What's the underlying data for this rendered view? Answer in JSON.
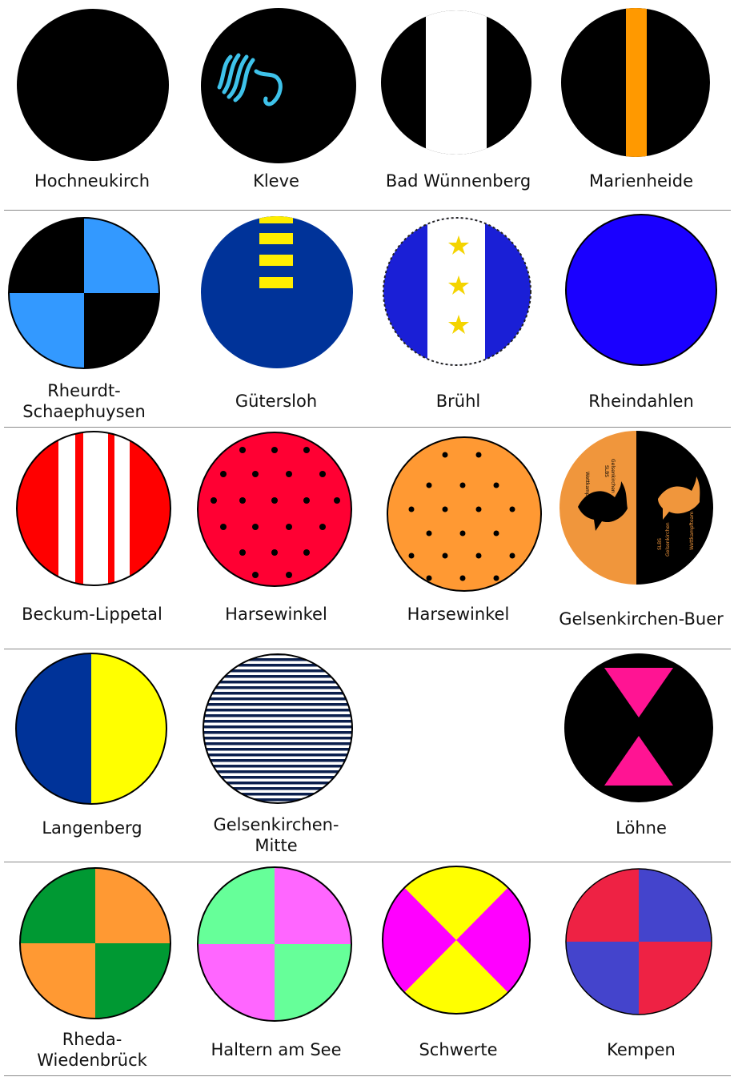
{
  "rows": [
    [
      {
        "label": "Hochneukirch"
      },
      {
        "label": "Kleve"
      },
      {
        "label": "Bad Wünnenberg"
      },
      {
        "label": "Marienheide"
      }
    ],
    [
      {
        "label": "Rheurdt-\nSchaephuysen"
      },
      {
        "label": "Gütersloh"
      },
      {
        "label": "Brühl"
      },
      {
        "label": "Rheindahlen"
      }
    ],
    [
      {
        "label": "Beckum-Lippetal"
      },
      {
        "label": "Harsewinkel"
      },
      {
        "label": "Harsewinkel"
      },
      {
        "label": "Gelsenkirchen-Buer"
      }
    ],
    [
      {
        "label": "Langenberg"
      },
      {
        "label": "Gelsenkirchen-\nMitte"
      },
      null,
      {
        "label": "Löhne"
      }
    ],
    [
      {
        "label": "Rheda-\nWiedenbrück"
      },
      {
        "label": "Haltern am See"
      },
      {
        "label": "Schwerte"
      },
      {
        "label": "Kempen"
      }
    ]
  ],
  "cap": {
    "logo_text_left": [
      "SLBS",
      "Gelsenkirchen",
      "Buer",
      "Wettkampfteam"
    ],
    "logo_text_right": [
      "SLBS",
      "Gelsenkirchen",
      "Buer",
      "Wettkampfteam"
    ]
  }
}
